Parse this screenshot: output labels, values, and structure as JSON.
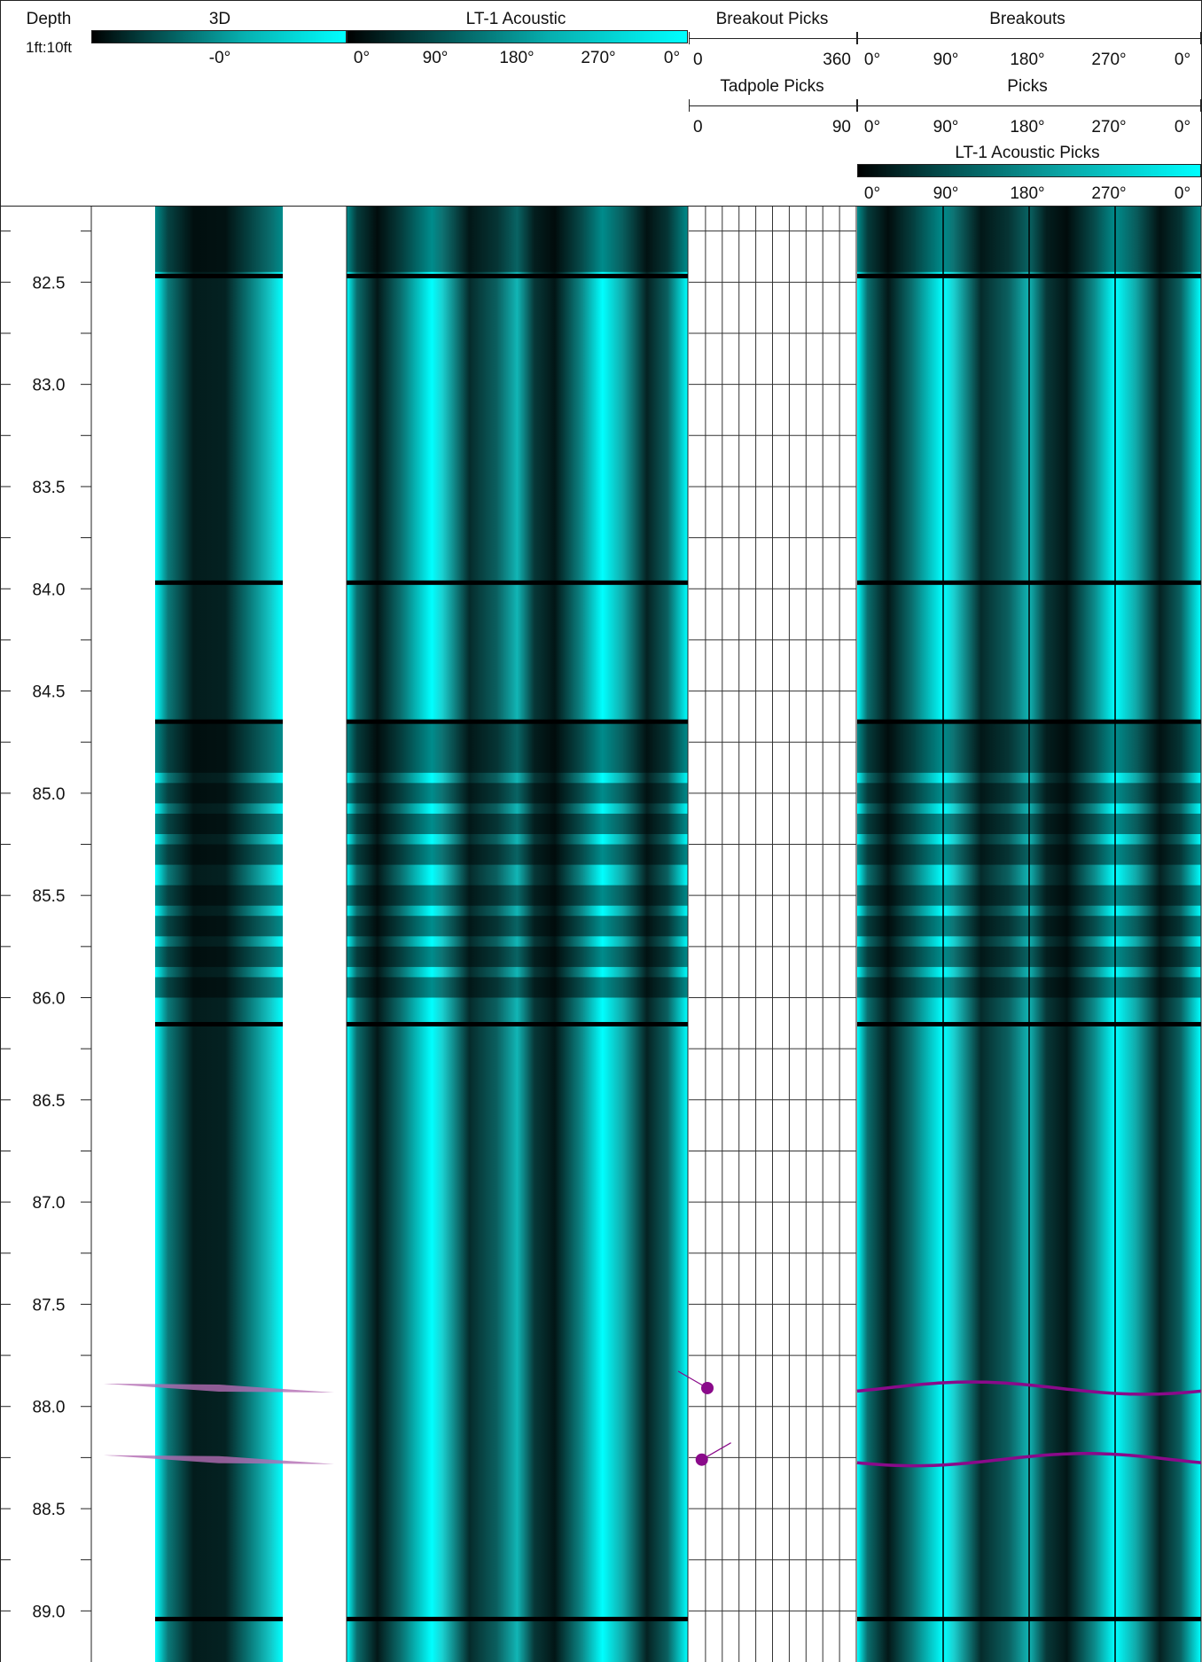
{
  "header": {
    "depth": {
      "title": "Depth",
      "scale": "1ft:10ft"
    },
    "track_3d": {
      "title": "3D",
      "scale_label": "-0°"
    },
    "lt1_acoustic": {
      "title": "LT-1 Acoustic",
      "ticks": [
        "0°",
        "90°",
        "180°",
        "270°",
        "0°"
      ]
    },
    "breakout_picks": {
      "title": "Breakout Picks",
      "min": "0",
      "max": "360"
    },
    "tadpole_picks": {
      "title": "Tadpole Picks",
      "min": "0",
      "max": "90"
    },
    "breakouts": {
      "title": "Breakouts",
      "ticks": [
        "0°",
        "90°",
        "180°",
        "270°",
        "0°"
      ]
    },
    "picks": {
      "title": "Picks",
      "ticks": [
        "0°",
        "90°",
        "180°",
        "270°",
        "0°"
      ]
    },
    "lt1_acoustic_picks": {
      "title": "LT-1 Acoustic Picks",
      "ticks": [
        "0°",
        "90°",
        "180°",
        "270°",
        "0°"
      ]
    }
  },
  "colors": {
    "image_bright": "#00ffff",
    "image_dark": "#000000",
    "pick": "#8a0a8a",
    "pick_3d": "#b36bb3"
  },
  "chart_data": {
    "type": "well-log",
    "depth_unit": "ft",
    "depth_range": [
      82.13,
      89.25
    ],
    "depth_ticks": [
      "82.5",
      "83.0",
      "83.5",
      "84.0",
      "84.5",
      "85.0",
      "85.5",
      "86.0",
      "86.5",
      "87.0",
      "87.5",
      "88.0",
      "88.5",
      "89.0"
    ],
    "depth_tick_values": [
      82.5,
      83.0,
      83.5,
      84.0,
      84.5,
      85.0,
      85.5,
      86.0,
      86.5,
      87.0,
      87.5,
      88.0,
      88.5,
      89.0
    ],
    "azimuth_range": [
      0,
      360
    ],
    "joint_depths": [
      82.47,
      83.97,
      84.65,
      86.13,
      89.04
    ],
    "dark_bands": [
      {
        "top": 82.13,
        "bottom": 82.45
      },
      {
        "top": 84.66,
        "bottom": 84.9
      },
      {
        "top": 84.95,
        "bottom": 85.05
      },
      {
        "top": 85.1,
        "bottom": 85.2
      },
      {
        "top": 85.25,
        "bottom": 85.35
      },
      {
        "top": 85.45,
        "bottom": 85.55
      },
      {
        "top": 85.6,
        "bottom": 85.7
      },
      {
        "top": 85.75,
        "bottom": 85.85
      },
      {
        "top": 85.9,
        "bottom": 86.0
      }
    ],
    "dark_stripe_azimuths": [
      0,
      90,
      180,
      270,
      360
    ],
    "planar_picks": [
      {
        "depth": 87.91,
        "dip_deg": 10,
        "dip_azimuth_deg": 300,
        "amplitude_ft": 0.03
      },
      {
        "depth": 88.26,
        "dip_deg": 7,
        "dip_azimuth_deg": 60,
        "amplitude_ft": 0.03
      }
    ]
  }
}
